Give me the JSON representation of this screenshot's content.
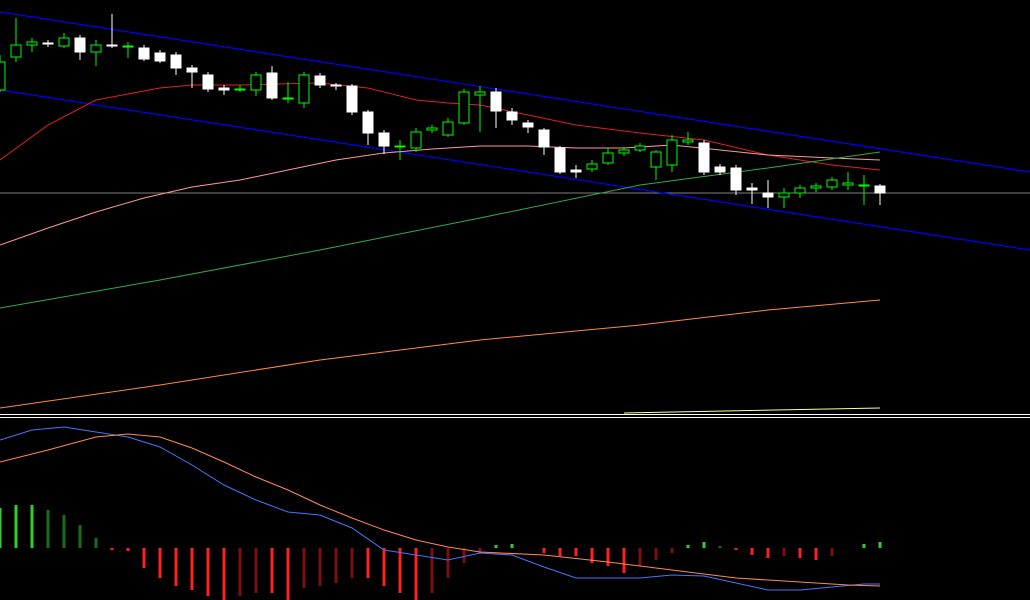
{
  "chart_data": [
    {
      "type": "candlestick",
      "xlim": [
        0,
        64.375
      ],
      "ylim": [
        0,
        415
      ],
      "up_color": "#00ff00",
      "down_color": "#ffffff",
      "open": [
        325,
        358,
        370,
        372,
        369,
        377,
        363,
        370,
        369,
        367,
        362,
        360,
        347,
        340,
        327,
        326,
        325,
        342,
        317,
        312,
        339,
        330,
        329,
        303,
        282,
        269,
        267,
        285,
        280,
        292,
        320,
        323,
        303,
        292,
        285,
        267,
        245,
        246,
        252,
        262,
        265,
        248,
        250,
        273,
        272,
        248,
        247,
        227,
        222,
        218,
        222,
        227,
        228,
        230,
        230,
        229
      ],
      "close": [
        353,
        370,
        373,
        371,
        377,
        363,
        370,
        369,
        369,
        356,
        354,
        347,
        343,
        326,
        325,
        326,
        340,
        317,
        317,
        340,
        330,
        329,
        303,
        282,
        269,
        269,
        283,
        287,
        293,
        323,
        323,
        304,
        295,
        288,
        268,
        243,
        243,
        251,
        262,
        265,
        269,
        263,
        275,
        275,
        243,
        243,
        225,
        225,
        218,
        222,
        227,
        229,
        235,
        232,
        230,
        222
      ],
      "high": [
        360,
        397,
        377,
        375,
        382,
        380,
        375,
        401,
        373,
        370,
        365,
        363,
        350,
        343,
        330,
        330,
        343,
        349,
        333,
        343,
        342,
        332,
        331,
        305,
        285,
        275,
        287,
        290,
        297,
        326,
        329,
        327,
        307,
        295,
        287,
        269,
        250,
        255,
        267,
        268,
        272,
        265,
        280,
        283,
        275,
        251,
        250,
        232,
        235,
        227,
        230,
        232,
        238,
        243,
        240,
        231
      ],
      "low": [
        323,
        353,
        363,
        368,
        367,
        355,
        349,
        367,
        357,
        354,
        352,
        340,
        327,
        323,
        320,
        323,
        319,
        315,
        312,
        307,
        327,
        325,
        300,
        270,
        261,
        255,
        263,
        282,
        278,
        290,
        283,
        287,
        290,
        282,
        260,
        241,
        237,
        243,
        250,
        259,
        263,
        235,
        243,
        270,
        240,
        240,
        220,
        211,
        207,
        207,
        217,
        223,
        225,
        225,
        210,
        210
      ],
      "lines": [
        {
          "color": "#e02020",
          "x": [
            0,
            3,
            6,
            10,
            12,
            15,
            20,
            23,
            26,
            28,
            30,
            33,
            36,
            40,
            44,
            48,
            52,
            55
          ],
          "values": [
            255,
            290,
            315,
            327,
            330,
            330,
            332,
            327,
            315,
            312,
            310,
            300,
            290,
            282,
            275,
            260,
            250,
            245
          ]
        },
        {
          "color": "#ff9999",
          "x": [
            0,
            3,
            6,
            9,
            12,
            15,
            18,
            21,
            24,
            27,
            30,
            33,
            36,
            39,
            42,
            45,
            48,
            52,
            55
          ],
          "values": [
            170,
            187,
            203,
            217,
            228,
            235,
            245,
            255,
            262,
            266,
            269,
            269,
            267,
            267,
            270,
            265,
            260,
            257,
            255
          ]
        },
        {
          "color": "#33aa44",
          "x": [
            0,
            10,
            20,
            30,
            40,
            48,
            55
          ],
          "values": [
            107,
            135,
            165,
            197,
            230,
            247,
            263
          ]
        },
        {
          "color": "#ff8844",
          "x": [
            0,
            10,
            20,
            30,
            40,
            48,
            55
          ],
          "values": [
            7,
            30,
            55,
            75,
            90,
            105,
            115
          ]
        },
        {
          "color": "#ffff99",
          "x": [
            39,
            55
          ],
          "values": [
            2,
            7
          ]
        }
      ],
      "trendlines": [
        {
          "color": "#0000ff",
          "x": [
            0,
            64.375
          ],
          "values": [
            403,
            243
          ]
        },
        {
          "color": "#0000ff",
          "x": [
            0,
            64.375
          ],
          "values": [
            325,
            165
          ]
        }
      ],
      "hline": {
        "value": 222,
        "color": "#808080"
      }
    },
    {
      "type": "macd",
      "xlim": [
        0,
        64.375
      ],
      "ylim": [
        -52,
        128
      ],
      "colors": {
        "up": "#33cc33",
        "up_weak": "#1a6b1a",
        "down": "#ff2020",
        "down_weak": "#7a1010"
      },
      "histogram": [
        40,
        43,
        43,
        38,
        33,
        23,
        10,
        -2,
        -3,
        -20,
        -30,
        -38,
        -42,
        -48,
        -52,
        -48,
        -45,
        -45,
        -52,
        -40,
        -38,
        -35,
        -30,
        -30,
        -38,
        -45,
        -52,
        -45,
        -30,
        -15,
        -5,
        3,
        4,
        0,
        -5,
        -8,
        -8,
        -15,
        -18,
        -25,
        -18,
        -12,
        -5,
        3,
        6,
        2,
        -2,
        -7,
        -10,
        -8,
        -10,
        -12,
        -8,
        0,
        4,
        6
      ],
      "lines": [
        {
          "color": "#4477ff",
          "x": [
            0,
            2,
            4,
            6,
            8,
            10,
            12,
            14,
            16,
            18,
            20,
            22,
            24,
            26,
            28,
            30,
            32,
            34,
            36,
            38,
            40,
            42,
            44,
            46,
            48,
            50,
            52,
            54,
            55
          ],
          "values": [
            108,
            118,
            121,
            116,
            111,
            101,
            83,
            63,
            48,
            36,
            33,
            20,
            -2,
            -7,
            -12,
            -5,
            -7,
            -19,
            -30,
            -30,
            -30,
            -27,
            -28,
            -35,
            -42,
            -42,
            -39,
            -36,
            -36
          ]
        },
        {
          "color": "#ff8855",
          "x": [
            0,
            3,
            6,
            8,
            10,
            12,
            14,
            16,
            18,
            20,
            22,
            24,
            26,
            28,
            30,
            34,
            38,
            42,
            46,
            50,
            53,
            55
          ],
          "values": [
            86,
            98,
            111,
            114,
            111,
            100,
            86,
            71,
            58,
            43,
            30,
            18,
            8,
            1,
            -4,
            -7,
            -14,
            -22,
            -30,
            -34,
            -37,
            -38
          ]
        }
      ]
    }
  ]
}
